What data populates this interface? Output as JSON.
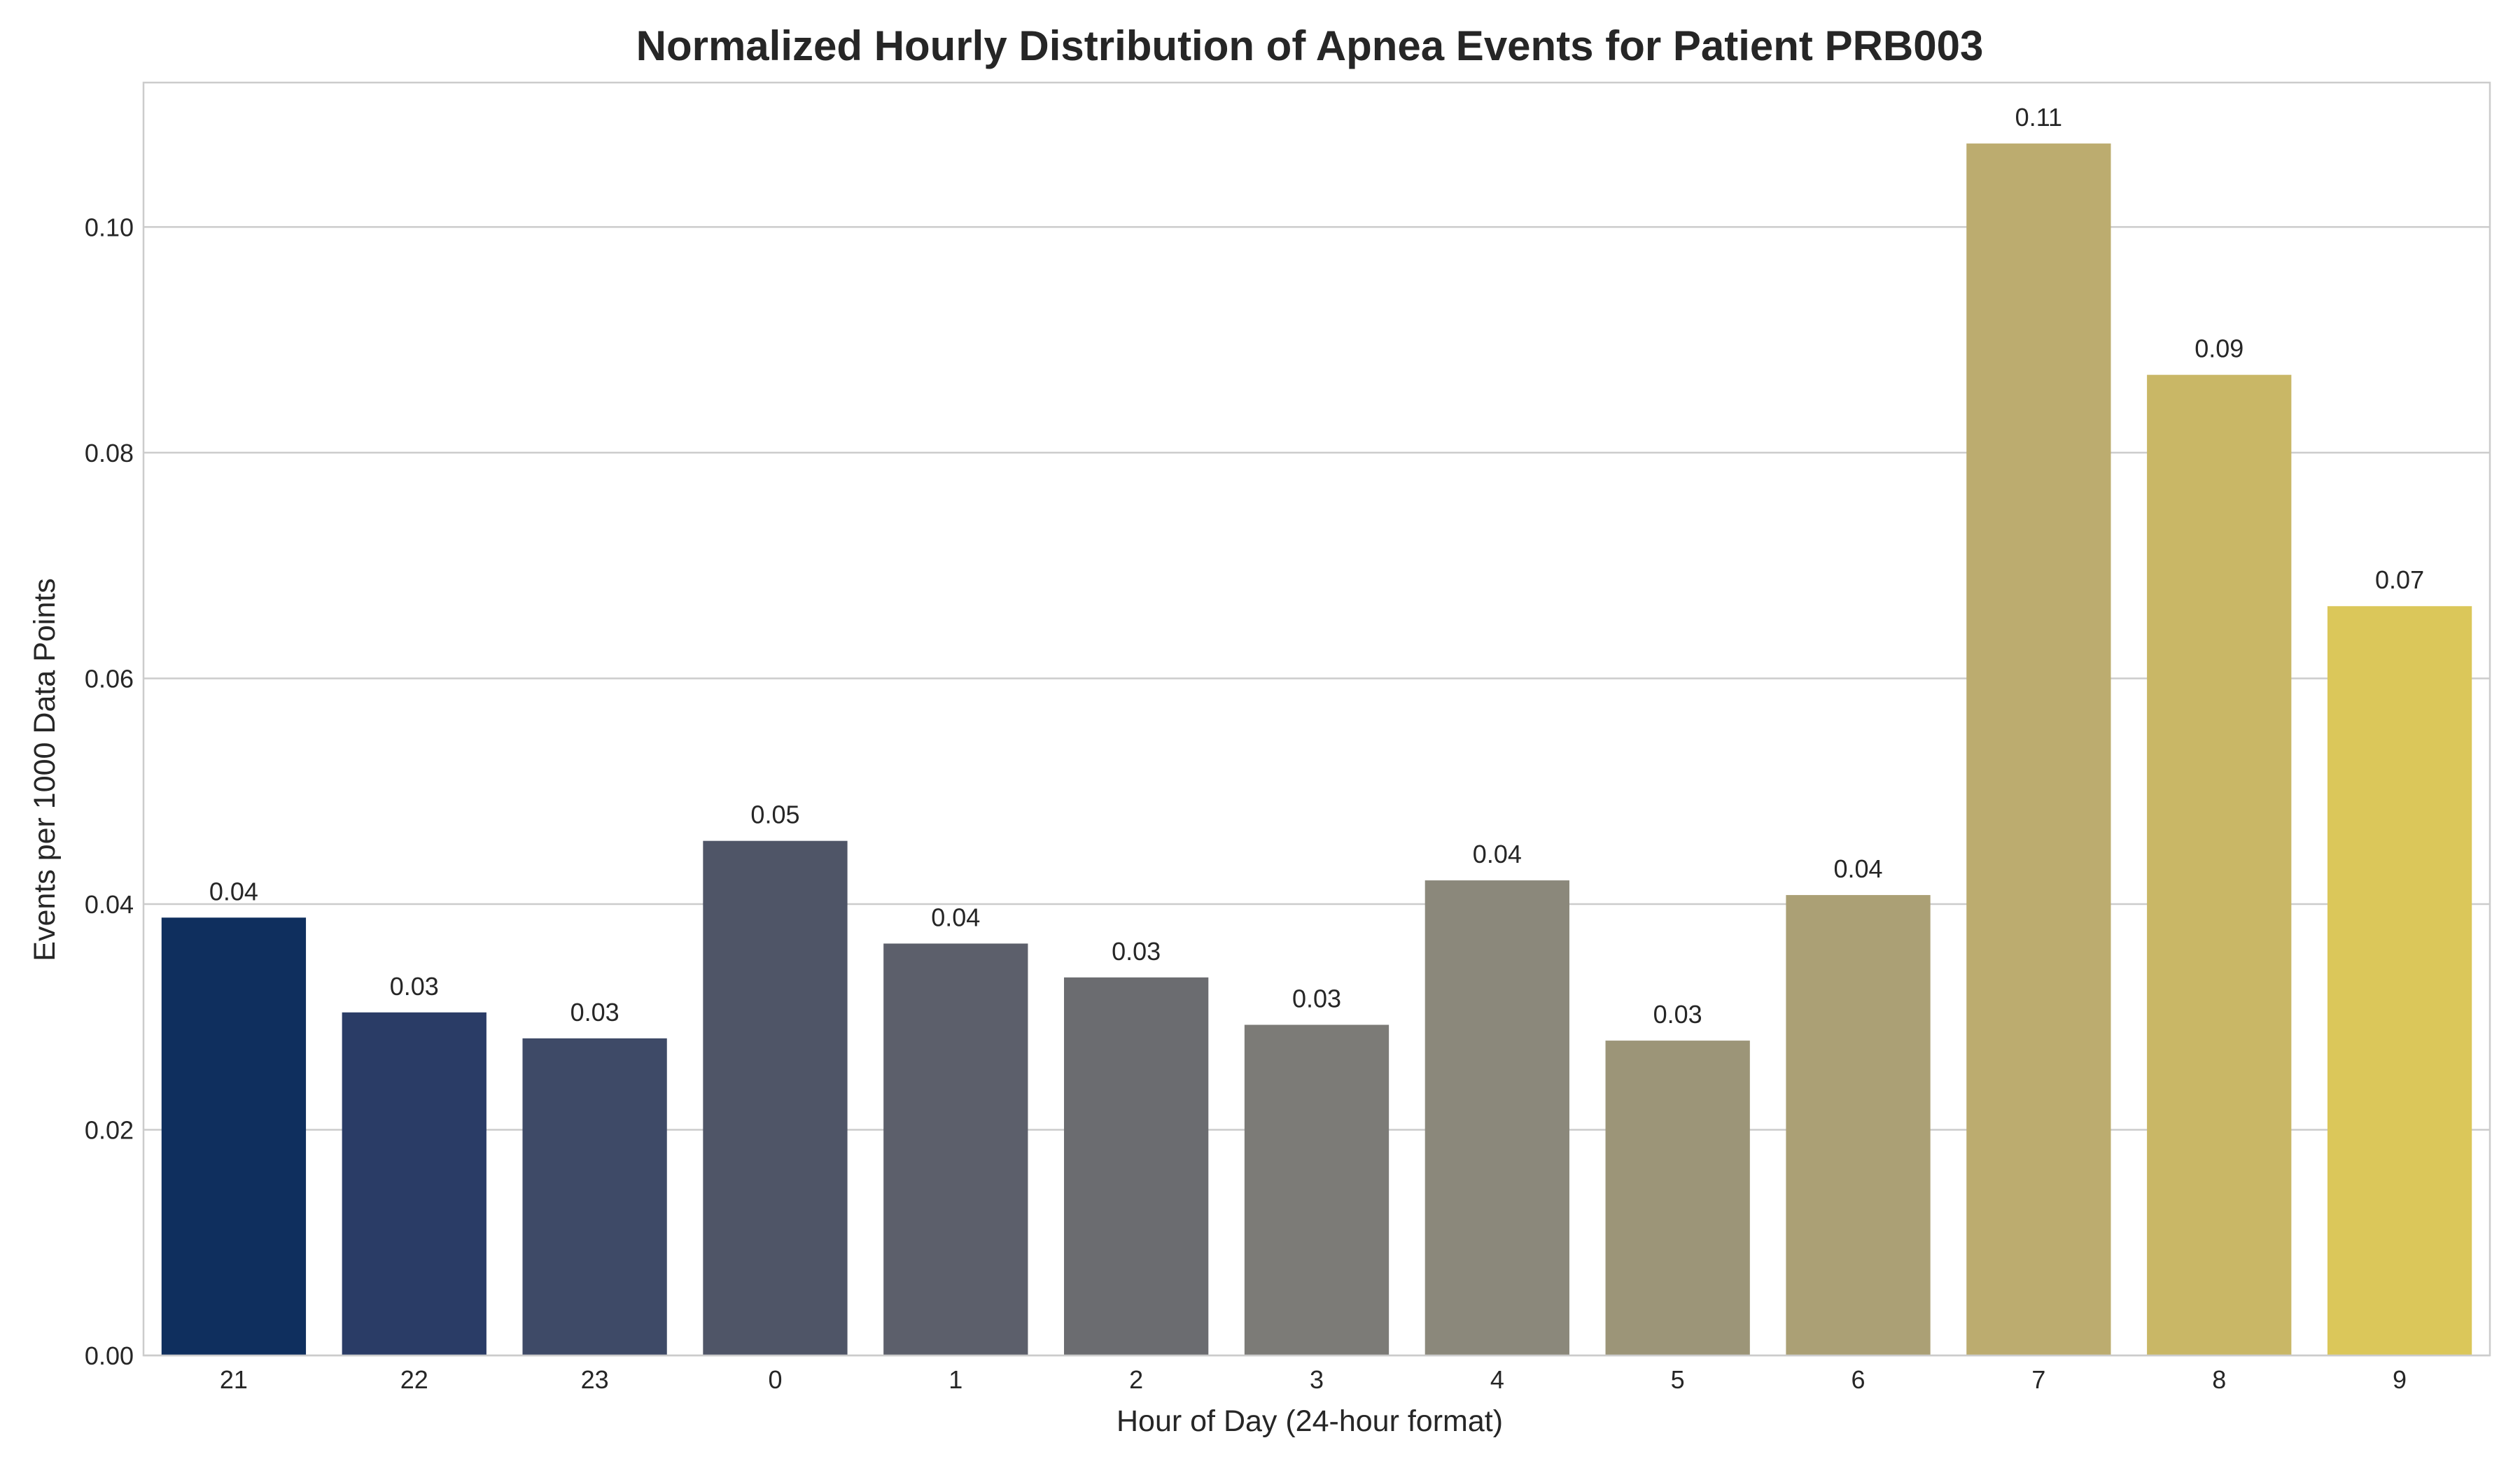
{
  "chart_data": {
    "type": "bar",
    "title": "Normalized Hourly Distribution of Apnea Events for Patient PRB003",
    "xlabel": "Hour of Day (24-hour format)",
    "ylabel": "Events per 1000 Data Points",
    "categories": [
      "21",
      "22",
      "23",
      "0",
      "1",
      "2",
      "3",
      "4",
      "5",
      "6",
      "7",
      "8",
      "9"
    ],
    "values": [
      0.0388,
      0.0304,
      0.0281,
      0.0456,
      0.0365,
      0.0335,
      0.0293,
      0.0421,
      0.0279,
      0.0408,
      0.1074,
      0.0869,
      0.0664
    ],
    "data_labels": [
      "0.04",
      "0.03",
      "0.03",
      "0.05",
      "0.04",
      "0.03",
      "0.03",
      "0.04",
      "0.03",
      "0.04",
      "0.11",
      "0.09",
      "0.07"
    ],
    "yticks": [
      0.0,
      0.02,
      0.04,
      0.06,
      0.08,
      0.1
    ],
    "ytick_labels": [
      "0.00",
      "0.02",
      "0.04",
      "0.06",
      "0.08",
      "0.10"
    ],
    "ylim": [
      0,
      0.1128
    ],
    "grid": "horizontal",
    "legend": "none",
    "colors": [
      "#0f2f5e",
      "#2a3c66",
      "#3e4a67",
      "#4f5567",
      "#5c5f6b",
      "#6b6c70",
      "#7c7b77",
      "#8b887b",
      "#9c9578",
      "#aba075",
      "#bcac6f",
      "#c9b766",
      "#dbc75a"
    ]
  }
}
